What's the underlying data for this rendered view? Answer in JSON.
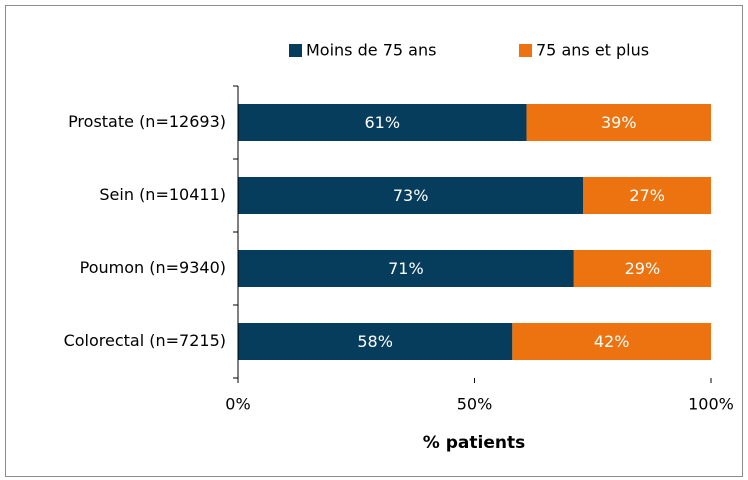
{
  "chart_data": {
    "type": "bar",
    "orientation": "horizontal",
    "stacked": true,
    "xlabel": "% patients",
    "categories": [
      "Prostate (n=12693)",
      "Sein (n=10411)",
      "Poumon (n=9340)",
      "Colorectal (n=7215)"
    ],
    "series": [
      {
        "name": "Moins de 75 ans",
        "color": "#063d5c",
        "values": [
          61,
          73,
          71,
          58
        ],
        "value_labels": [
          "61%",
          "73%",
          "71%",
          "58%"
        ]
      },
      {
        "name": "75 ans et plus",
        "color": "#ec730f",
        "values": [
          39,
          27,
          29,
          42
        ],
        "value_labels": [
          "39%",
          "27%",
          "29%",
          "42%"
        ]
      }
    ],
    "xlim": [
      0,
      100
    ],
    "xticks": [
      {
        "value": 0,
        "label": "0%"
      },
      {
        "value": 50,
        "label": "50%"
      },
      {
        "value": 100,
        "label": "100%"
      }
    ],
    "legend": "top"
  }
}
